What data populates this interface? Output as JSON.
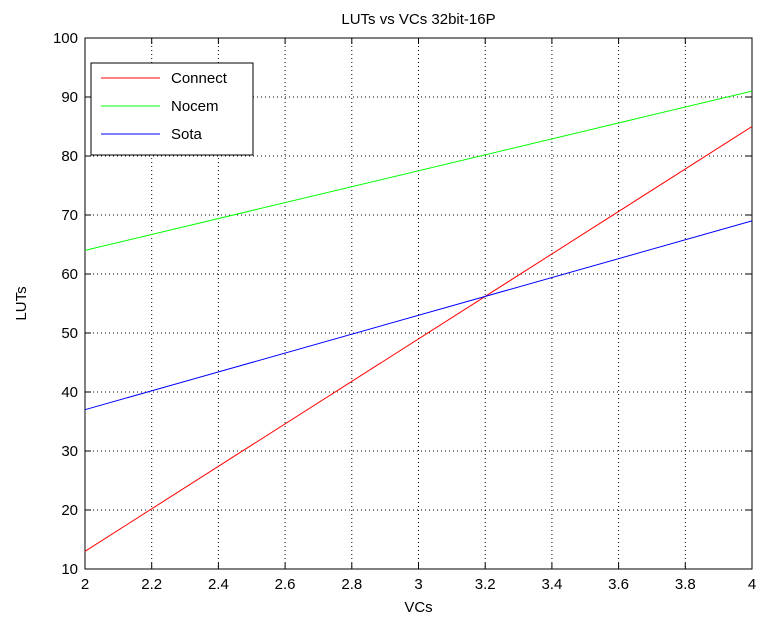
{
  "chart_data": {
    "type": "line",
    "title": "LUTs vs VCs 32bit-16P",
    "xlabel": "VCs",
    "ylabel": "LUTs",
    "xlim": [
      2,
      4
    ],
    "ylim": [
      10,
      100
    ],
    "xticks": [
      "2",
      "2.2",
      "2.4",
      "2.6",
      "2.8",
      "3",
      "3.2",
      "3.4",
      "3.6",
      "3.8",
      "4"
    ],
    "yticks": [
      "10",
      "20",
      "30",
      "40",
      "50",
      "60",
      "70",
      "80",
      "90",
      "100"
    ],
    "grid": true,
    "legend_position": "top-left",
    "series": [
      {
        "name": "Connect",
        "color": "#ff0000",
        "x": [
          2,
          4
        ],
        "y": [
          13,
          85
        ]
      },
      {
        "name": "Nocem",
        "color": "#00ff00",
        "x": [
          2,
          4
        ],
        "y": [
          64,
          91
        ]
      },
      {
        "name": "Sota",
        "color": "#0000ff",
        "x": [
          2,
          4
        ],
        "y": [
          37,
          69
        ]
      }
    ]
  }
}
